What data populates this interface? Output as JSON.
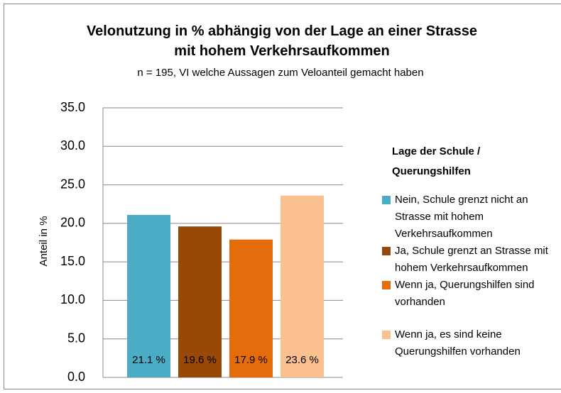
{
  "chart_data": {
    "type": "bar",
    "title": "Velonutzung in % abhängig von der Lage an einer Strasse mit hohem Verkehrsaufkommen",
    "subtitle": "n = 195, VI welche Aussagen zum Veloanteil gemacht haben",
    "y_label": "Anteil in %",
    "legend_title": "Lage der Schule / Querungshilfen",
    "legend_position": "right",
    "grid": true,
    "categories": [
      null
    ],
    "series": [
      {
        "name": "Nein, Schule grenzt nicht an Strasse mit hohem Verkehrsaufkommen",
        "color": "#4bacc6",
        "values": [
          21.1
        ],
        "value_labels": [
          "21.1 %"
        ]
      },
      {
        "name": "Ja, Schule grenzt an Strasse mit hohem Verkehrsaufkommen",
        "color": "#984807",
        "values": [
          19.6
        ],
        "value_labels": [
          "19.6 %"
        ]
      },
      {
        "name": "Wenn ja, Querungshilfen sind vorhanden",
        "color": "#e46c0a",
        "values": [
          17.9
        ],
        "value_labels": [
          "17.9 %"
        ]
      },
      {
        "name": "Wenn ja, es sind keine Querungshilfen vorhanden",
        "color": "#fac090",
        "values": [
          23.6
        ],
        "value_labels": [
          "23.6 %"
        ]
      }
    ],
    "ylim": [
      0,
      35
    ],
    "yticks": [
      {
        "value": 0,
        "label": "0.0"
      },
      {
        "value": 5,
        "label": "5.0"
      },
      {
        "value": 10,
        "label": "10.0"
      },
      {
        "value": 15,
        "label": "15.0"
      },
      {
        "value": 20,
        "label": "20.0"
      },
      {
        "value": 25,
        "label": "25.0"
      },
      {
        "value": 30,
        "label": "30.0"
      },
      {
        "value": 35,
        "label": "35.0"
      }
    ]
  }
}
